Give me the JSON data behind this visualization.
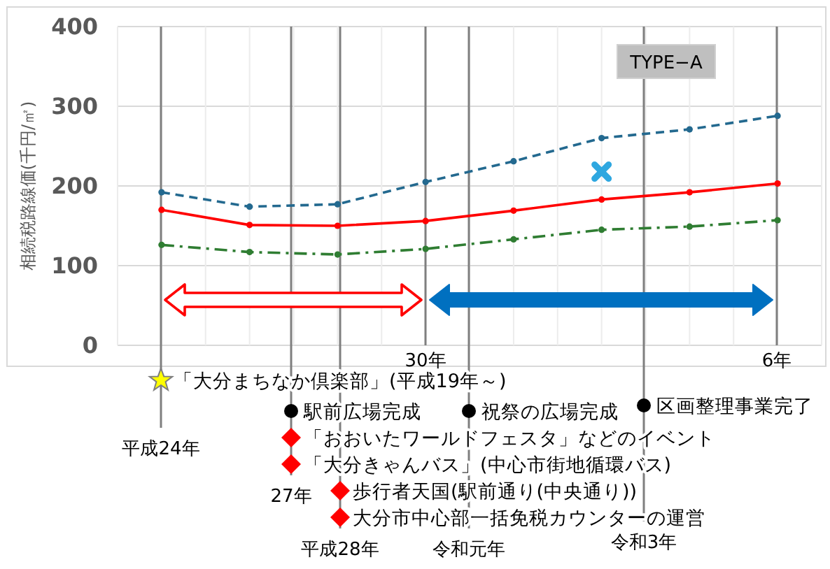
{
  "chart_data": {
    "type": "line",
    "ylabel": "相続税路線価(千円/㎡)",
    "categories": [
      null,
      null,
      null,
      null,
      null,
      null,
      null,
      null
    ],
    "ylim": [
      0,
      400
    ],
    "yticks": [
      0,
      100,
      200,
      300,
      400
    ],
    "grid": true,
    "marker": "circle",
    "series": [
      {
        "color": "#23698f",
        "line_style": "dashed",
        "values": [
          192,
          174,
          177,
          205,
          231,
          260,
          271,
          288
        ]
      },
      {
        "color": "#ff0000",
        "line_style": "solid",
        "values": [
          170,
          151,
          150,
          156,
          169,
          183,
          192,
          203
        ]
      },
      {
        "color": "#2f7d32",
        "line_style": "dashdot",
        "values": [
          126,
          117,
          114,
          121,
          133,
          145,
          149,
          157
        ]
      },
      {
        "marker": "cross",
        "line_style": "none",
        "color": "#2ea7e0",
        "values": [
          null,
          null,
          null,
          null,
          null,
          218,
          null,
          null
        ]
      }
    ],
    "annotations": [
      "TYPE−A",
      "「大分まちなか倶楽部」(平成19年～)",
      "駅前広場完成",
      "祝祭の広場完成",
      "区画整理事業完了",
      "「おおいたワールドフェスタ」などのイベント",
      "「大分きゃんバス」(中心市街地循環バス)",
      "歩行者天国(駅前通り(中央通り))",
      "大分市中心部一括免税カウンターの運営",
      "平成24年",
      "27年",
      "平成28年",
      "30年",
      "令和元年",
      "令和3年",
      "6年"
    ]
  }
}
